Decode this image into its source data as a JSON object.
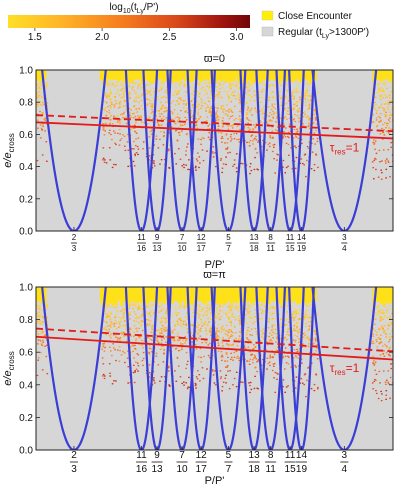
{
  "colorbar": {
    "label": "log10(tLy/P')",
    "label_parts": {
      "prefix": "log",
      "sub10": "10",
      "open": "(t",
      "subLy": "Ly",
      "close": "/P')"
    },
    "ticks": [
      "1.5",
      "2.0",
      "2.5",
      "3.0"
    ],
    "range": [
      1.3,
      3.1
    ],
    "colors": [
      "#ffdf27",
      "#ffb427",
      "#f57b1e",
      "#d8471b",
      "#a1150f",
      "#6f0707"
    ]
  },
  "legend": {
    "items": [
      {
        "label": "Close Encounter",
        "color": "#ffef00"
      },
      {
        "label": "Regular (tLy>1300P')",
        "label_parts": {
          "a": "Regular (t",
          "sub": "Ly",
          "b": ">1300P')"
        },
        "color": "#d6d6d6"
      }
    ]
  },
  "chart_data": [
    {
      "type": "scatter",
      "title": "ϖ=0",
      "xlabel": "P/P'",
      "ylabel": "e/ecross",
      "ylabel_parts": {
        "main": "e/e",
        "sub": "cross"
      },
      "xlim": [
        0.655,
        0.765
      ],
      "ylim": [
        0.0,
        1.0
      ],
      "yticks": [
        "0.0",
        "0.2",
        "0.4",
        "0.6",
        "0.8",
        "1.0"
      ],
      "xticks": [
        {
          "x": 0.6667,
          "num": "2",
          "den": "3"
        },
        {
          "x": 0.6875,
          "num": "11",
          "den": "16"
        },
        {
          "x": 0.6923,
          "num": "9",
          "den": "13"
        },
        {
          "x": 0.7,
          "num": "7",
          "den": "10"
        },
        {
          "x": 0.7059,
          "num": "12",
          "den": "17"
        },
        {
          "x": 0.7143,
          "num": "5",
          "den": "7"
        },
        {
          "x": 0.7222,
          "num": "13",
          "den": "18"
        },
        {
          "x": 0.7273,
          "num": "8",
          "den": "11"
        },
        {
          "x": 0.7333,
          "num": "11",
          "den": "15"
        },
        {
          "x": 0.7368,
          "num": "14",
          "den": "19"
        },
        {
          "x": 0.75,
          "num": "3",
          "den": "4"
        }
      ],
      "resonance_curves": [
        {
          "center": 0.6667,
          "width": 0.0098
        },
        {
          "center": 0.6875,
          "width": 0.0048
        },
        {
          "center": 0.6923,
          "width": 0.0042
        },
        {
          "center": 0.7,
          "width": 0.0045
        },
        {
          "center": 0.7059,
          "width": 0.0042
        },
        {
          "center": 0.7143,
          "width": 0.0052
        },
        {
          "center": 0.7222,
          "width": 0.0042
        },
        {
          "center": 0.7273,
          "width": 0.0044
        },
        {
          "center": 0.7333,
          "width": 0.0042
        },
        {
          "center": 0.7368,
          "width": 0.0038
        },
        {
          "center": 0.75,
          "width": 0.0098
        }
      ],
      "solid_line": {
        "x": [
          0.655,
          0.765
        ],
        "y": [
          0.675,
          0.575
        ]
      },
      "dashed_line": {
        "x": [
          0.655,
          0.765
        ],
        "y": [
          0.72,
          0.62
        ]
      },
      "annotation": {
        "text": "τres=1",
        "main": "τ",
        "sub": "res",
        "tail": "=1",
        "color": "#e41a1c"
      },
      "encounter_top": [
        0.93,
        0.93
      ]
    },
    {
      "type": "scatter",
      "title": "ϖ=π",
      "xlabel": "P/P'",
      "ylabel": "e/ecross",
      "ylabel_parts": {
        "main": "e/e",
        "sub": "cross"
      },
      "xlim": [
        0.655,
        0.765
      ],
      "ylim": [
        0.0,
        1.0
      ],
      "yticks": [
        "0.0",
        "0.2",
        "0.4",
        "0.6",
        "0.8",
        "1.0"
      ],
      "xticks": [
        {
          "x": 0.6667,
          "num": "2",
          "den": "3"
        },
        {
          "x": 0.6875,
          "num": "11",
          "den": "16"
        },
        {
          "x": 0.6923,
          "num": "9",
          "den": "13"
        },
        {
          "x": 0.7,
          "num": "7",
          "den": "10"
        },
        {
          "x": 0.7059,
          "num": "12",
          "den": "17"
        },
        {
          "x": 0.7143,
          "num": "5",
          "den": "7"
        },
        {
          "x": 0.7222,
          "num": "13",
          "den": "18"
        },
        {
          "x": 0.7273,
          "num": "8",
          "den": "11"
        },
        {
          "x": 0.7333,
          "num": "11",
          "den": "15"
        },
        {
          "x": 0.7368,
          "num": "14",
          "den": "19"
        },
        {
          "x": 0.75,
          "num": "3",
          "den": "4"
        }
      ],
      "resonance_curves": [
        {
          "center": 0.6667,
          "width": 0.0098
        },
        {
          "center": 0.6875,
          "width": 0.0048
        },
        {
          "center": 0.6923,
          "width": 0.0042
        },
        {
          "center": 0.7,
          "width": 0.0045
        },
        {
          "center": 0.7059,
          "width": 0.0042
        },
        {
          "center": 0.7143,
          "width": 0.0052
        },
        {
          "center": 0.7222,
          "width": 0.0042
        },
        {
          "center": 0.7273,
          "width": 0.0044
        },
        {
          "center": 0.7333,
          "width": 0.0042
        },
        {
          "center": 0.7368,
          "width": 0.0038
        },
        {
          "center": 0.75,
          "width": 0.0098
        }
      ],
      "solid_line": {
        "x": [
          0.655,
          0.765
        ],
        "y": [
          0.695,
          0.555
        ]
      },
      "dashed_line": {
        "x": [
          0.655,
          0.765
        ],
        "y": [
          0.745,
          0.605
        ]
      },
      "annotation": {
        "text": "τres=1",
        "main": "τ",
        "sub": "res",
        "tail": "=1",
        "color": "#e41a1c"
      },
      "encounter_top": [
        0.9,
        0.9
      ]
    }
  ]
}
